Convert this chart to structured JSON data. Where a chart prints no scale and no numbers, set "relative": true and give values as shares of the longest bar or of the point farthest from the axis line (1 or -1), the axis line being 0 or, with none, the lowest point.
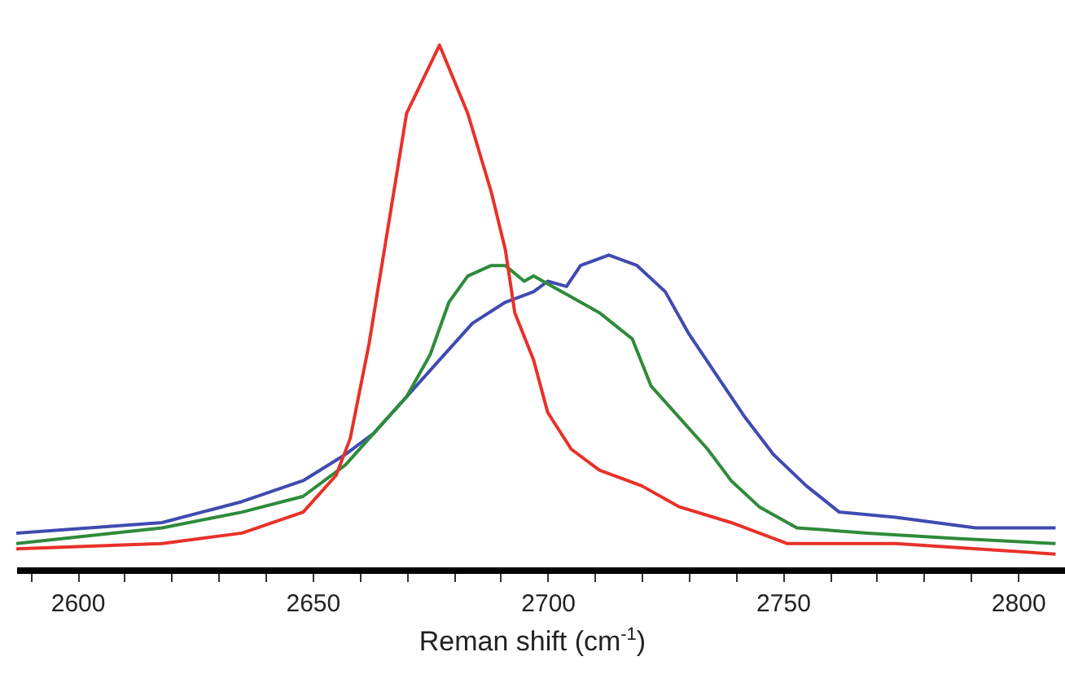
{
  "chart_data": {
    "type": "line",
    "xlabel": "Reman shift (cm$^{-1}$)",
    "relative": true,
    "grid": false,
    "legend": false,
    "marker": "none",
    "line_style": "solid",
    "xlim": [
      2587,
      2810
    ],
    "xticks": [
      {
        "value": 2590,
        "label": null
      },
      2600,
      {
        "value": 2610,
        "label": null
      },
      {
        "value": 2620,
        "label": null
      },
      {
        "value": 2630,
        "label": null
      },
      {
        "value": 2640,
        "label": null
      },
      2650,
      {
        "value": 2660,
        "label": null
      },
      {
        "value": 2670,
        "label": null
      },
      {
        "value": 2680,
        "label": null
      },
      {
        "value": 2690,
        "label": null
      },
      2700,
      {
        "value": 2710,
        "label": null
      },
      {
        "value": 2720,
        "label": null
      },
      {
        "value": 2730,
        "label": null
      },
      {
        "value": 2740,
        "label": null
      },
      2750,
      {
        "value": 2760,
        "label": null
      },
      {
        "value": 2770,
        "label": null
      },
      {
        "value": 2780,
        "label": null
      },
      {
        "value": 2790,
        "label": null
      },
      2800
    ],
    "series": [
      {
        "color": "#3f4bb0",
        "x": [
          2587,
          2618,
          2635,
          2648,
          2657,
          2663,
          2670,
          2677,
          2684,
          2691,
          2697,
          2700,
          2704,
          2707,
          2713,
          2719,
          2725,
          2730,
          2736,
          2742,
          2748,
          2755,
          2762,
          2774,
          2791,
          2808
        ],
        "values": [
          0.07,
          0.09,
          0.13,
          0.17,
          0.22,
          0.26,
          0.33,
          0.4,
          0.47,
          0.51,
          0.53,
          0.55,
          0.54,
          0.58,
          0.6,
          0.58,
          0.53,
          0.45,
          0.37,
          0.29,
          0.22,
          0.16,
          0.11,
          0.1,
          0.08,
          0.08
        ]
      },
      {
        "color": "#2e8b3a",
        "x": [
          2587,
          2618,
          2635,
          2648,
          2657,
          2663,
          2670,
          2675,
          2679,
          2683,
          2688,
          2691,
          2695,
          2697,
          2699,
          2705,
          2711,
          2718,
          2722,
          2728,
          2734,
          2739,
          2745,
          2753,
          2768,
          2786,
          2808
        ],
        "values": [
          0.05,
          0.08,
          0.11,
          0.14,
          0.2,
          0.26,
          0.33,
          0.41,
          0.51,
          0.56,
          0.58,
          0.58,
          0.55,
          0.56,
          0.55,
          0.52,
          0.49,
          0.44,
          0.35,
          0.29,
          0.23,
          0.17,
          0.12,
          0.08,
          0.07,
          0.06,
          0.05
        ]
      },
      {
        "color": "#e8312a",
        "x": [
          2587,
          2618,
          2635,
          2648,
          2655,
          2658,
          2662,
          2666,
          2670,
          2677,
          2683,
          2688,
          2691,
          2693,
          2697,
          2700,
          2705,
          2711,
          2720,
          2728,
          2739,
          2751,
          2774,
          2808
        ],
        "values": [
          0.04,
          0.05,
          0.07,
          0.11,
          0.18,
          0.25,
          0.43,
          0.65,
          0.87,
          1.0,
          0.87,
          0.72,
          0.61,
          0.49,
          0.4,
          0.3,
          0.23,
          0.19,
          0.16,
          0.12,
          0.09,
          0.05,
          0.05,
          0.03
        ]
      }
    ]
  }
}
